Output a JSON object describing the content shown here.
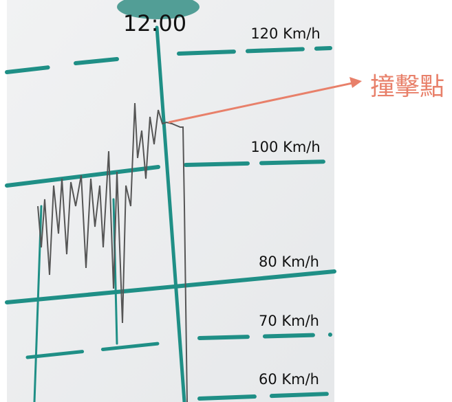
{
  "time_label": "12:00",
  "speed_labels": [
    "120 Km/h",
    "100 Km/h",
    "80 Km/h",
    "70 Km/h",
    "60 Km/h"
  ],
  "annotation": "撞擊點"
}
